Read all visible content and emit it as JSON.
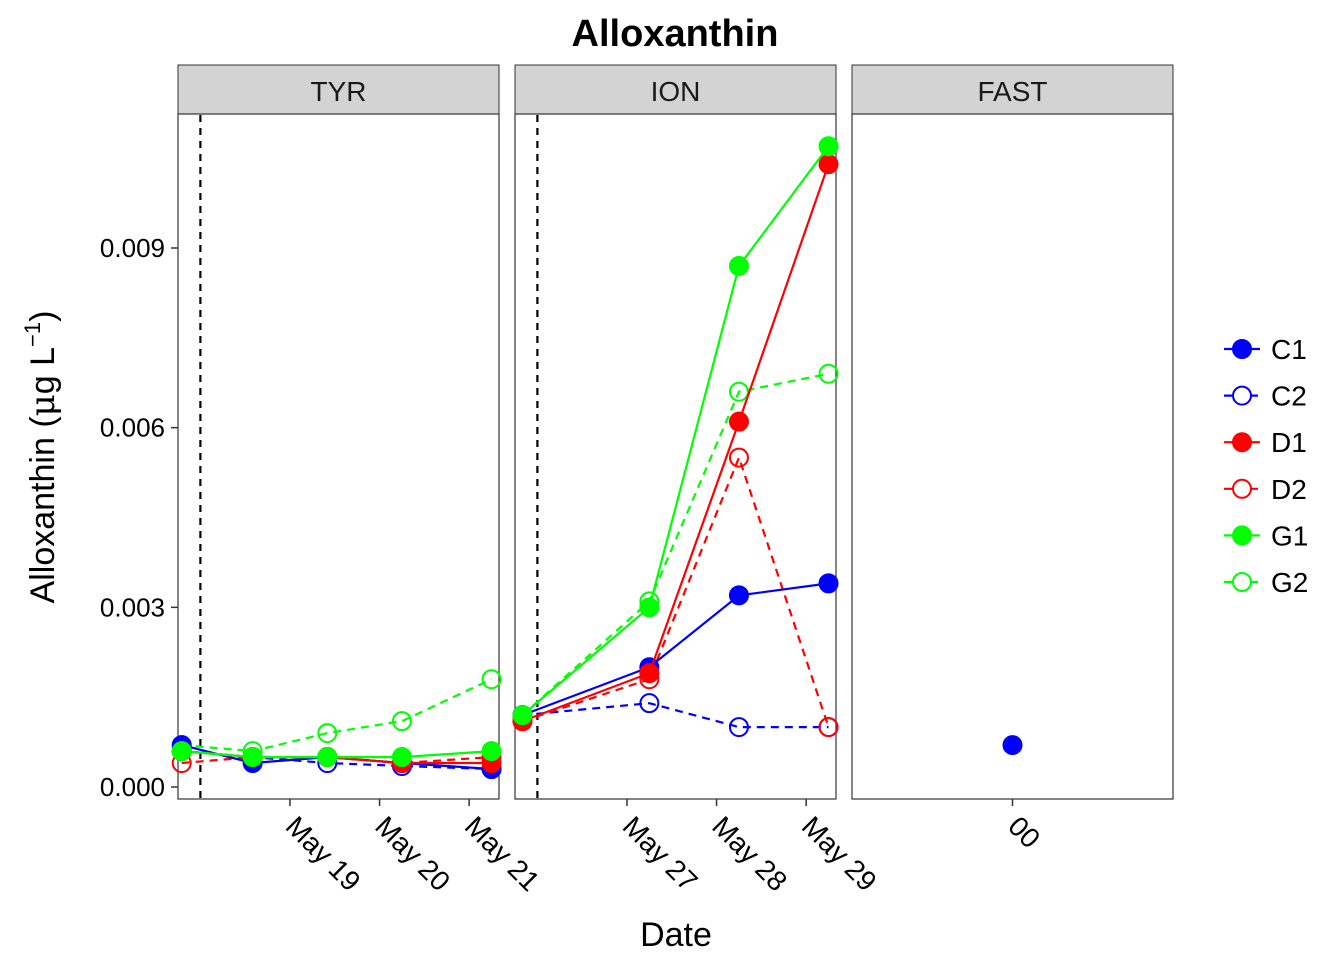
{
  "chart_data": {
    "type": "line",
    "title": "Alloxanthin",
    "xlabel": "Date",
    "ylabel": {
      "prefix": "Alloxanthin (",
      "mu": "μ",
      "unit": "g L",
      "sup": "−1",
      "suffix": ")"
    },
    "ylim": [
      0,
      0.01125
    ],
    "yticks": [
      {
        "value": 0.0,
        "label": "0.000"
      },
      {
        "value": 0.003,
        "label": "0.003"
      },
      {
        "value": 0.006,
        "label": "0.006"
      },
      {
        "value": 0.009,
        "label": "0.009"
      }
    ],
    "grid": false,
    "legend_position": "right",
    "series_styles": {
      "C1": {
        "color": "#0000ff",
        "filled": true,
        "dashed": false
      },
      "C2": {
        "color": "#0000ff",
        "filled": false,
        "dashed": true
      },
      "D1": {
        "color": "#ff0000",
        "filled": true,
        "dashed": false
      },
      "D2": {
        "color": "#ff0000",
        "filled": false,
        "dashed": true
      },
      "G1": {
        "color": "#00ff00",
        "filled": true,
        "dashed": false
      },
      "G2": {
        "color": "#00ff00",
        "filled": false,
        "dashed": true
      }
    },
    "legend": [
      "C1",
      "C2",
      "D1",
      "D2",
      "G1",
      "G2"
    ],
    "panels": [
      {
        "name": "TYR",
        "x_domain": [
          "2016-05-17T18:00",
          "2016-05-21T08:00"
        ],
        "vline": "2016-05-18T00:00",
        "xticks": [
          {
            "value": "2016-05-19T00:00",
            "label": "May 19"
          },
          {
            "value": "2016-05-20T00:00",
            "label": "May 20"
          },
          {
            "value": "2016-05-21T00:00",
            "label": "May 21"
          }
        ],
        "series": [
          {
            "name": "C1",
            "points": [
              [
                "2016-05-17T19:00",
                0.0007
              ],
              [
                "2016-05-18T14:00",
                0.0004
              ],
              [
                "2016-05-19T10:00",
                0.0005
              ],
              [
                "2016-05-20T06:00",
                0.0004
              ],
              [
                "2016-05-21T06:00",
                0.0003
              ]
            ]
          },
          {
            "name": "C2",
            "points": [
              [
                "2016-05-17T19:00",
                0.0006
              ],
              [
                "2016-05-18T14:00",
                0.0005
              ],
              [
                "2016-05-19T10:00",
                0.0004
              ],
              [
                "2016-05-20T06:00",
                0.00035
              ],
              [
                "2016-05-21T06:00",
                0.0003
              ]
            ]
          },
          {
            "name": "D1",
            "points": [
              [
                "2016-05-17T19:00",
                0.0006
              ],
              [
                "2016-05-18T14:00",
                0.0005
              ],
              [
                "2016-05-19T10:00",
                0.0005
              ],
              [
                "2016-05-20T06:00",
                0.0004
              ],
              [
                "2016-05-21T06:00",
                0.0004
              ]
            ]
          },
          {
            "name": "D2",
            "points": [
              [
                "2016-05-17T19:00",
                0.0004
              ],
              [
                "2016-05-18T14:00",
                0.0005
              ],
              [
                "2016-05-19T10:00",
                0.0005
              ],
              [
                "2016-05-20T06:00",
                0.0004
              ],
              [
                "2016-05-21T06:00",
                0.0005
              ]
            ]
          },
          {
            "name": "G1",
            "points": [
              [
                "2016-05-17T19:00",
                0.0006
              ],
              [
                "2016-05-18T14:00",
                0.0005
              ],
              [
                "2016-05-19T10:00",
                0.0005
              ],
              [
                "2016-05-20T06:00",
                0.0005
              ],
              [
                "2016-05-21T06:00",
                0.0006
              ]
            ]
          },
          {
            "name": "G2",
            "points": [
              [
                "2016-05-17T19:00",
                0.0007
              ],
              [
                "2016-05-18T14:00",
                0.0006
              ],
              [
                "2016-05-19T10:00",
                0.0009
              ],
              [
                "2016-05-20T06:00",
                0.0011
              ],
              [
                "2016-05-21T06:00",
                0.0018
              ]
            ]
          }
        ]
      },
      {
        "name": "ION",
        "x_domain": [
          "2016-05-25T18:00",
          "2016-05-29T08:00"
        ],
        "vline": "2016-05-26T00:00",
        "xticks": [
          {
            "value": "2016-05-27T00:00",
            "label": "May 27"
          },
          {
            "value": "2016-05-28T00:00",
            "label": "May 28"
          },
          {
            "value": "2016-05-29T00:00",
            "label": "May 29"
          }
        ],
        "series": [
          {
            "name": "C1",
            "points": [
              [
                "2016-05-25T20:00",
                0.0012
              ],
              [
                "2016-05-27T06:00",
                0.002
              ],
              [
                "2016-05-28T06:00",
                0.0032
              ],
              [
                "2016-05-29T06:00",
                0.0034
              ]
            ]
          },
          {
            "name": "C2",
            "points": [
              [
                "2016-05-25T20:00",
                0.0012
              ],
              [
                "2016-05-27T06:00",
                0.0014
              ],
              [
                "2016-05-28T06:00",
                0.001
              ],
              [
                "2016-05-29T06:00",
                0.001
              ]
            ]
          },
          {
            "name": "D1",
            "points": [
              [
                "2016-05-25T20:00",
                0.0011
              ],
              [
                "2016-05-27T06:00",
                0.0019
              ],
              [
                "2016-05-28T06:00",
                0.0061
              ],
              [
                "2016-05-29T06:00",
                0.0104
              ]
            ]
          },
          {
            "name": "D2",
            "points": [
              [
                "2016-05-25T20:00",
                0.0011
              ],
              [
                "2016-05-27T06:00",
                0.0018
              ],
              [
                "2016-05-28T06:00",
                0.0055
              ],
              [
                "2016-05-29T06:00",
                0.001
              ]
            ]
          },
          {
            "name": "G1",
            "points": [
              [
                "2016-05-25T20:00",
                0.0012
              ],
              [
                "2016-05-27T06:00",
                0.003
              ],
              [
                "2016-05-28T06:00",
                0.0087
              ],
              [
                "2016-05-29T06:00",
                0.0107
              ]
            ]
          },
          {
            "name": "G2",
            "points": [
              [
                "2016-05-25T20:00",
                0.0012
              ],
              [
                "2016-05-27T06:00",
                0.0031
              ],
              [
                "2016-05-28T06:00",
                0.0066
              ],
              [
                "2016-05-29T06:00",
                0.0069
              ]
            ]
          }
        ]
      },
      {
        "name": "FAST",
        "x_domain": [
          -1,
          1
        ],
        "xticks": [
          {
            "value": 0,
            "label": "00"
          }
        ],
        "series": [
          {
            "name": "C1",
            "points": [
              [
                0,
                0.0007
              ]
            ]
          }
        ]
      }
    ]
  }
}
